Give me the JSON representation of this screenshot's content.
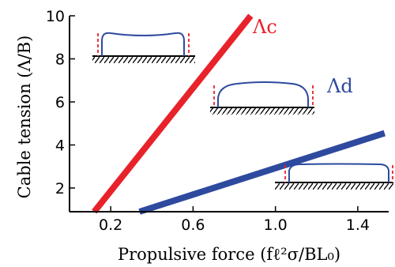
{
  "chart_data": {
    "type": "line",
    "xlabel": "Propulsive force (fℓ²σ/BL₀)",
    "ylabel": "Cable tension (Λ/B)",
    "xlim": [
      0.0,
      1.55
    ],
    "ylim": [
      0.9,
      10.0
    ],
    "x_ticks": [
      0.2,
      0.6,
      1.0,
      1.4
    ],
    "x_tick_labels": [
      "0.2",
      "0.6",
      "1.0",
      "1.4"
    ],
    "y_ticks": [
      2,
      4,
      6,
      8,
      10
    ],
    "y_tick_labels": [
      "2",
      "4",
      "6",
      "8",
      "10"
    ],
    "grid": false,
    "legend": "inline",
    "series": [
      {
        "name": "Λc",
        "color": "#e8222b",
        "points": [
          [
            0.12,
            0.9
          ],
          [
            0.88,
            10.0
          ]
        ]
      },
      {
        "name": "Λd",
        "color": "#2e4a9e",
        "points": [
          [
            0.34,
            0.9
          ],
          [
            1.53,
            4.55
          ]
        ]
      }
    ],
    "insets": [
      "hull-shape-high-tension",
      "hull-shape-mid-tension",
      "hull-shape-low-tension"
    ]
  }
}
